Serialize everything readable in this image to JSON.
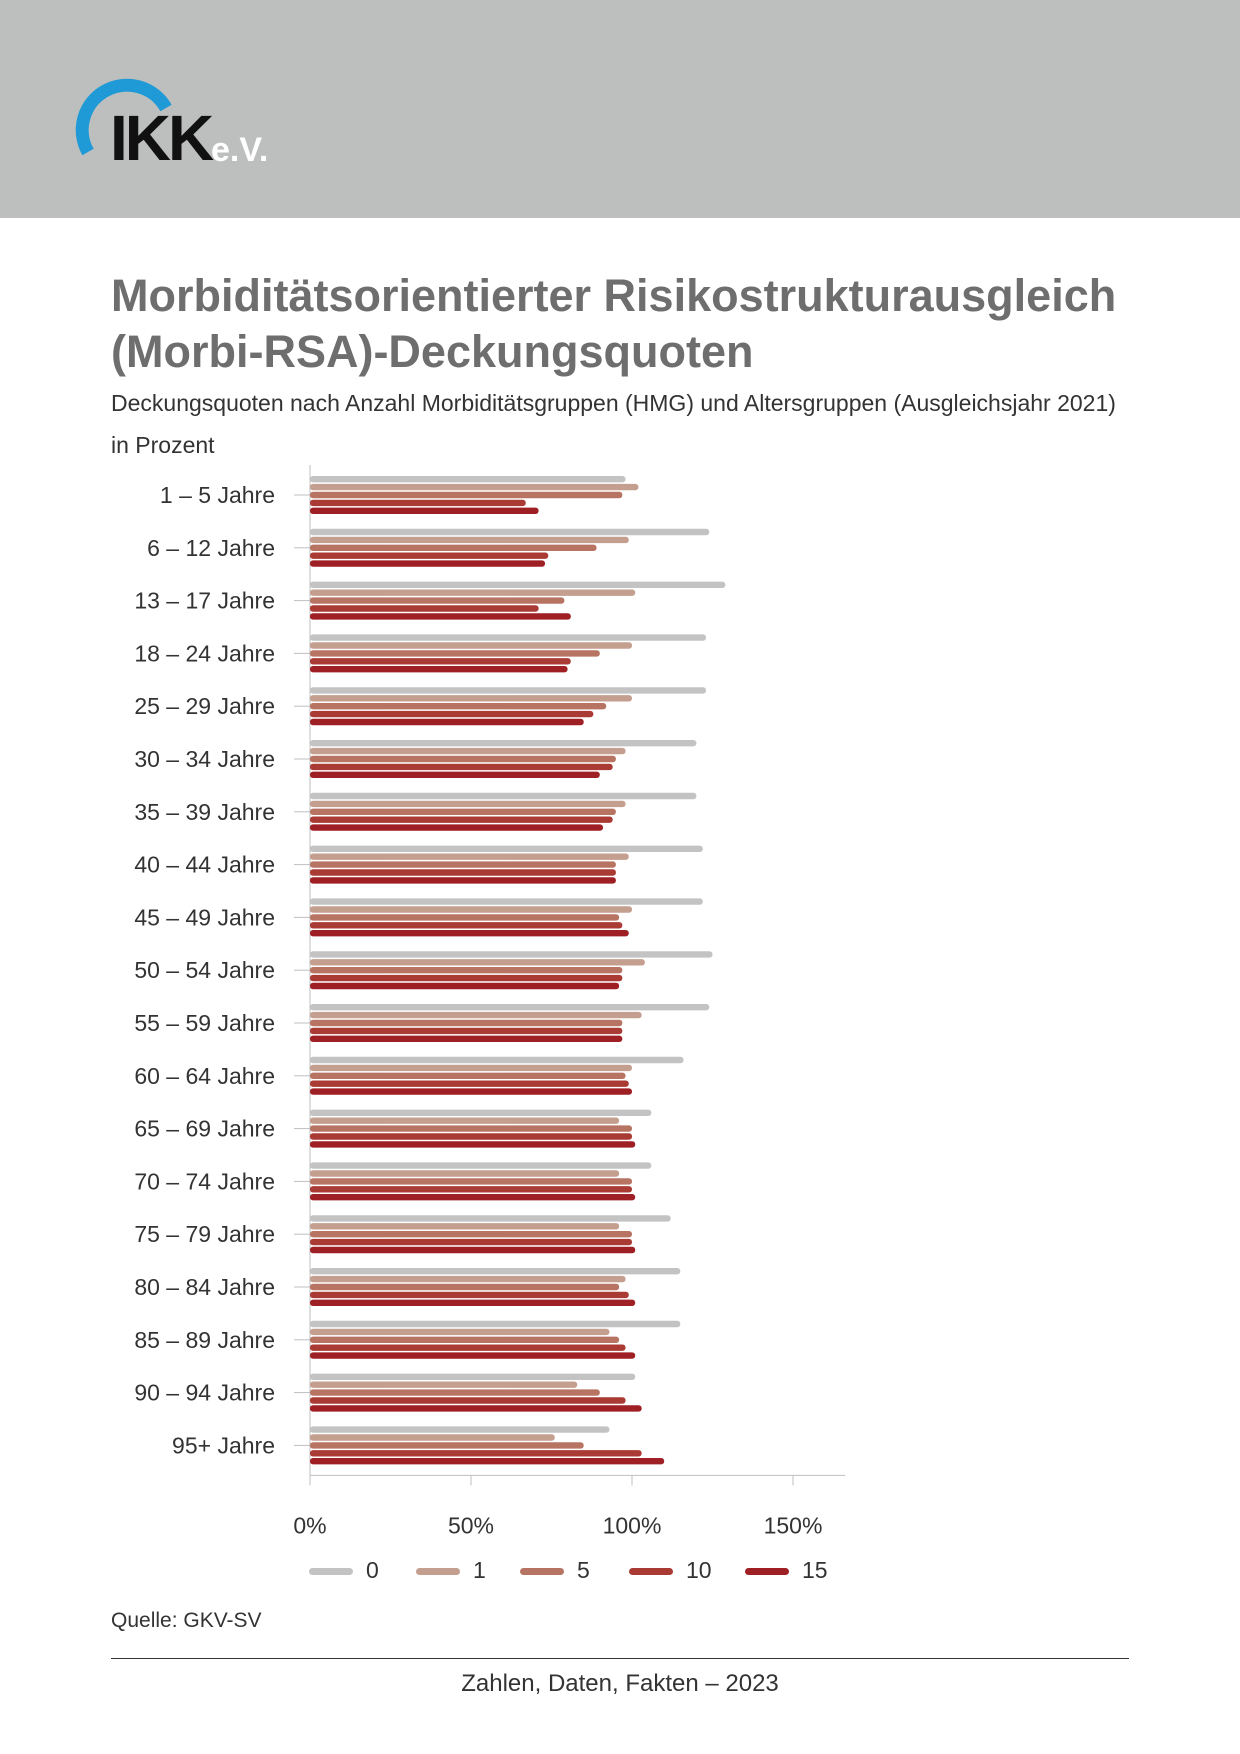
{
  "header": {
    "logo": {
      "text": "IKK",
      "suffix": "e.V.",
      "ring_color": "#1f9ad6"
    }
  },
  "title": "Morbiditätsorientierter Risikostrukturausgleich (Morbi-RSA)-Deckungsquoten",
  "subtitle": "Deckungsquoten nach Anzahl Morbiditätsgruppen (HMG) und Altersgruppen (Ausgleichsjahr 2021)",
  "unit_label": "in Prozent",
  "chart_data": {
    "type": "bar",
    "orientation": "horizontal",
    "categories": [
      "1 – 5 Jahre",
      "6 – 12 Jahre",
      "13 – 17 Jahre",
      "18 – 24 Jahre",
      "25 – 29 Jahre",
      "30 – 34 Jahre",
      "35 – 39 Jahre",
      "40 – 44 Jahre",
      "45 – 49 Jahre",
      "50 – 54 Jahre",
      "55 – 59 Jahre",
      "60 – 64 Jahre",
      "65 – 69 Jahre",
      "70 – 74 Jahre",
      "75 – 79 Jahre",
      "80 – 84 Jahre",
      "85 – 89 Jahre",
      "90 – 94 Jahre",
      "95+ Jahre"
    ],
    "series": [
      {
        "name": "0",
        "color": "#c3c3c3",
        "values": [
          98,
          124,
          129,
          123,
          123,
          120,
          120,
          122,
          122,
          125,
          124,
          116,
          106,
          106,
          112,
          115,
          115,
          101,
          93
        ]
      },
      {
        "name": "1",
        "color": "#c49e8e",
        "values": [
          102,
          99,
          101,
          100,
          100,
          98,
          98,
          99,
          100,
          104,
          103,
          100,
          96,
          96,
          96,
          98,
          93,
          83,
          76
        ]
      },
      {
        "name": "5",
        "color": "#b77462",
        "values": [
          97,
          89,
          79,
          90,
          92,
          95,
          95,
          95,
          96,
          97,
          97,
          98,
          100,
          100,
          100,
          96,
          96,
          90,
          85
        ]
      },
      {
        "name": "10",
        "color": "#a93a34",
        "values": [
          67,
          74,
          71,
          81,
          88,
          94,
          94,
          95,
          97,
          97,
          97,
          99,
          100,
          100,
          100,
          99,
          98,
          98,
          103
        ]
      },
      {
        "name": "15",
        "color": "#9e1f24",
        "values": [
          71,
          73,
          81,
          80,
          85,
          90,
          91,
          95,
          99,
          96,
          97,
          100,
          101,
          101,
          101,
          101,
          101,
          103,
          110
        ]
      }
    ],
    "xlim": [
      0,
      160
    ],
    "x_ticks": [
      "0%",
      "50%",
      "100%",
      "150%"
    ],
    "x_tick_values": [
      0,
      50,
      100,
      150
    ],
    "legend_placement": "bottom",
    "source": "Quelle: GKV-SV"
  },
  "footer": "Zahlen, Daten, Fakten – 2023"
}
